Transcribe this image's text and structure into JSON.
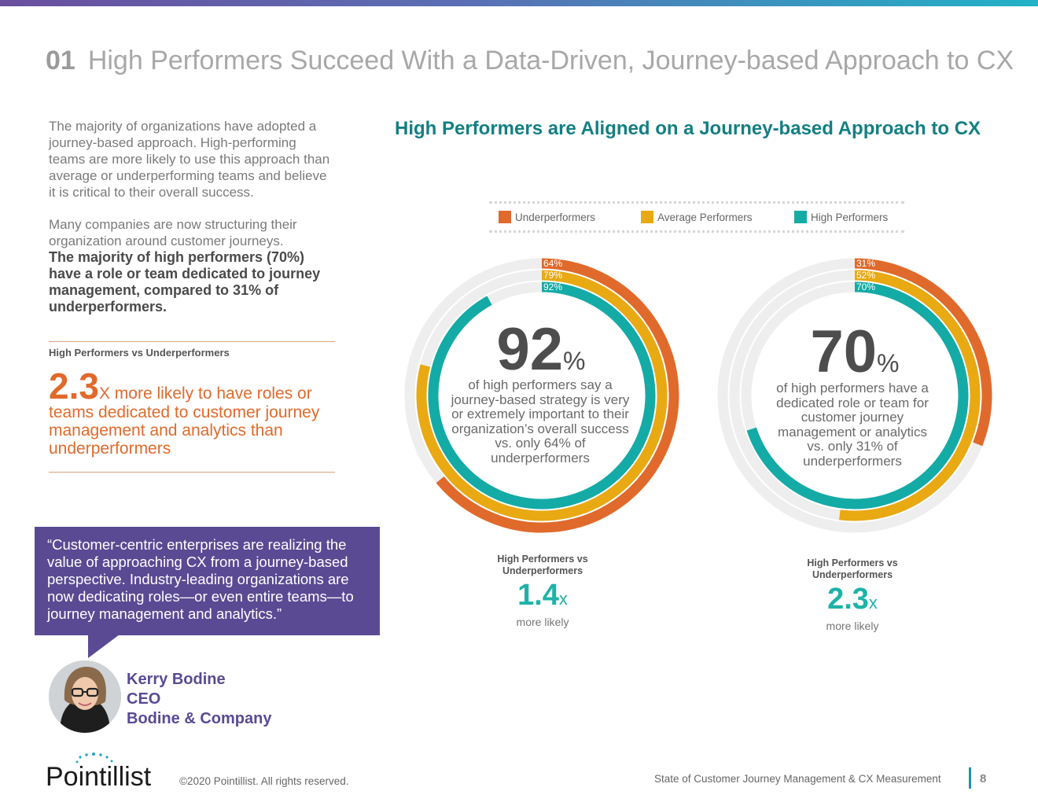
{
  "header": {
    "section_number": "01",
    "title": "High Performers Succeed With a Data-Driven, Journey-based Approach to CX"
  },
  "intro": {
    "paragraph1": "The majority of organizations have adopted a journey-based approach. High-performing teams are more likely to use this approach than average or underperforming teams and believe it is critical to their overall success.",
    "paragraph2": "Many companies are now structuring their organization around customer journeys.",
    "paragraph2_bold": "The majority of high performers (70%) have a role or team dedicated to journey management, compared to 31% of underperformers."
  },
  "stat": {
    "label": "High Performers vs Underperformers",
    "big": "2.3",
    "text": "X more likely to have roles or teams dedicated to customer journey management and analytics than underperformers"
  },
  "quote": {
    "text": "“Customer-centric enterprises are realizing the value of approaching CX from a journey-based perspective. Industry-leading organizations are now dedicating roles—or even entire teams—to journey management and analytics.”",
    "name": "Kerry Bodine",
    "role": "CEO",
    "company": "Bodine & Company"
  },
  "colors": {
    "underperformers": "#e06a2b",
    "average": "#e8a913",
    "high": "#14aba6",
    "track": "#eeeeee",
    "quote_bg": "#5a4a93"
  },
  "chart_data": [
    {
      "type": "radial-bar",
      "title": "High Performers are Aligned on a Journey-based Approach to CX",
      "legend": [
        "Underperformers",
        "Average Performers",
        "High Performers"
      ],
      "series": [
        {
          "name": "Underperformers",
          "value": 64,
          "label": "64%"
        },
        {
          "name": "Average Performers",
          "value": 79,
          "label": "79%"
        },
        {
          "name": "High Performers",
          "value": 92,
          "label": "92%"
        }
      ],
      "center_value": "92",
      "center_unit": "%",
      "center_text": "of high performers say a journey-based strategy is very or extremely important to their organization’s overall success vs. only 64% of underperformers",
      "comparison_label": "High Performers vs Underperformers",
      "comparison_value": "1.4",
      "comparison_unit": "x",
      "comparison_sub": "more likely"
    },
    {
      "type": "radial-bar",
      "title": "High Performers are Aligned on a Journey-based Approach to CX",
      "legend": [
        "Underperformers",
        "Average Performers",
        "High Performers"
      ],
      "series": [
        {
          "name": "Underperformers",
          "value": 31,
          "label": "31%"
        },
        {
          "name": "Average Performers",
          "value": 52,
          "label": "52%"
        },
        {
          "name": "High Performers",
          "value": 70,
          "label": "70%"
        }
      ],
      "center_value": "70",
      "center_unit": "%",
      "center_text": "of high performers have a dedicated role or team for customer journey management or analytics vs. only 31% of underperformers",
      "comparison_label": "High Performers vs Underperformers",
      "comparison_value": "2.3",
      "comparison_unit": "x",
      "comparison_sub": "more likely"
    }
  ],
  "footer": {
    "logo": "Pointillist",
    "copyright": "©2020 Pointillist. All rights reserved.",
    "report": "State of Customer Journey Management & CX Measurement",
    "page": "8"
  }
}
